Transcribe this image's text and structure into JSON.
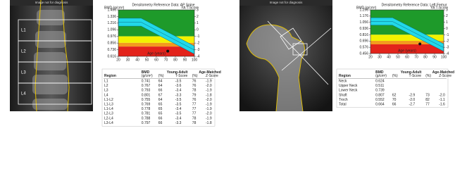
{
  "spine": {
    "image_title": "Image not for diagnosis",
    "vertebrae": [
      "L1",
      "L2",
      "L3",
      "L4"
    ],
    "chart": {
      "title": "Densitometry Reference Data: AP Spine",
      "y_label": "BMD (g/cm²)",
      "y2_label": "YA T-Score",
      "x_label": "Age (years)",
      "ylim": [
        0.616,
        1.456
      ],
      "yticks": [
        {
          "value": 1.456,
          "label": "1.456"
        },
        {
          "value": 1.336,
          "label": "1.336"
        },
        {
          "value": 1.216,
          "label": "1.216"
        },
        {
          "value": 1.096,
          "label": "1.096"
        },
        {
          "value": 0.976,
          "label": "0.976"
        },
        {
          "value": 0.856,
          "label": "0.856"
        },
        {
          "value": 0.736,
          "label": "0.736"
        },
        {
          "value": 0.616,
          "label": "0.616"
        }
      ],
      "y2lim": [
        3,
        -4
      ],
      "y2ticks": [
        3,
        2,
        1,
        0,
        -1,
        -2,
        -3,
        -4
      ],
      "xlim": [
        20,
        100
      ],
      "xticks": [
        20,
        30,
        40,
        50,
        60,
        70,
        80,
        90,
        100
      ],
      "point": {
        "age": 72,
        "bmd": 0.71
      }
    },
    "table": {
      "headers": [
        "Region",
        "BMD",
        "Young-Adult",
        "Age-Matched"
      ],
      "subheaders": [
        "(g/cm²)",
        "(%)",
        "T-Score",
        "(%)",
        "Z-Score"
      ],
      "rows": [
        [
          "L1",
          "0.741",
          "64",
          "-3.5",
          "76",
          "-1.9"
        ],
        [
          "L2",
          "0.767",
          "64",
          "-3.6",
          "76",
          "-2.0"
        ],
        [
          "L3",
          "0.793",
          "66",
          "-3.4",
          "78",
          "-1.9"
        ],
        [
          "L4",
          "0.801",
          "67",
          "-3.3",
          "79",
          "-1.8"
        ],
        [
          "L1-L2",
          "0.755",
          "64",
          "-3.5",
          "76",
          "-2.0"
        ],
        [
          "L1-L3",
          "0.769",
          "65",
          "-3.5",
          "77",
          "-1.9"
        ],
        [
          "L1-L4",
          "0.778",
          "65",
          "-3.4",
          "77",
          "-1.9"
        ],
        [
          "L2-L3",
          "0.781",
          "65",
          "-3.5",
          "77",
          "-2.0"
        ],
        [
          "L2-L4",
          "0.788",
          "66",
          "-3.4",
          "78",
          "-1.9"
        ],
        [
          "L3-L4",
          "0.797",
          "66",
          "-3.3",
          "78",
          "-1.8"
        ]
      ]
    }
  },
  "hip": {
    "image_title": "Image not for diagnosis",
    "chart": {
      "title": "Densitometry Reference Data: Left Femur",
      "y_label": "BMD (g/cm²)",
      "y2_label": "YA T-Score",
      "x_label": "Age (years)",
      "ylim": [
        0.456,
        1.296
      ],
      "yticks": [
        {
          "value": 1.296,
          "label": "1.296"
        },
        {
          "value": 1.176,
          "label": "1.176"
        },
        {
          "value": 1.056,
          "label": "1.056"
        },
        {
          "value": 0.936,
          "label": "0.936"
        },
        {
          "value": 0.816,
          "label": "0.816"
        },
        {
          "value": 0.696,
          "label": "0.696"
        },
        {
          "value": 0.576,
          "label": "0.576"
        },
        {
          "value": 0.456,
          "label": "0.456"
        }
      ],
      "y2lim": [
        3,
        -4
      ],
      "y2ticks": [
        3,
        2,
        1,
        0,
        -1,
        -2,
        -3,
        -4
      ],
      "xlim": [
        20,
        100
      ],
      "xticks": [
        20,
        30,
        40,
        50,
        60,
        70,
        80,
        90,
        100
      ],
      "point": {
        "age": 74,
        "bmd": 0.64
      }
    },
    "table": {
      "headers": [
        "Region",
        "BMD",
        "Young-Adult",
        "Age-Matched"
      ],
      "subheaders": [
        "(g/cm²)",
        "(%)",
        "T-Score",
        "(%)",
        "Z-Score"
      ],
      "rows": [
        [
          "Neck",
          "0.624"
        ],
        [
          "Upper Neck",
          "0.511"
        ],
        [
          "Lower Neck",
          "0.739"
        ],
        [
          "Shaft",
          "0.807",
          "62",
          "-2.9",
          "73",
          "-2.0"
        ],
        [
          "Troch",
          "0.552",
          "70",
          "-2.0",
          "82",
          "-1.1"
        ],
        [
          "Total",
          "0.664",
          "66",
          "-2.7",
          "77",
          "-1.6"
        ]
      ]
    }
  }
}
